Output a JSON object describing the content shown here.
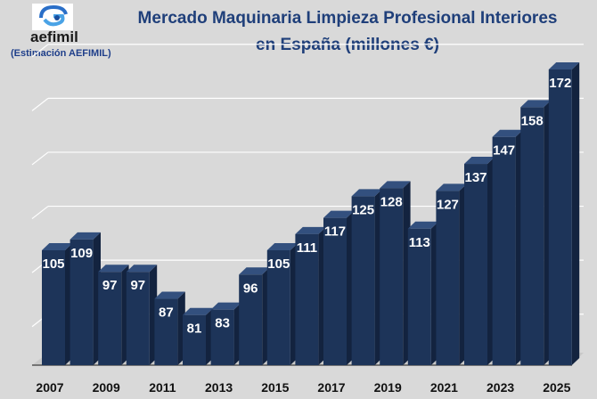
{
  "logo": {
    "name": "aefimil",
    "note": "(Estimación AEFIMIL)"
  },
  "chart_data": {
    "type": "bar",
    "title_line1": "Mercado Maquinaria Limpieza Profesional Interiores",
    "title_line2": "en España (millones €)",
    "categories": [
      "2007",
      "2008",
      "2009",
      "2010",
      "2011",
      "2012",
      "2013",
      "2014",
      "2015",
      "2016",
      "2017",
      "2018",
      "2019",
      "2020",
      "2021",
      "2022",
      "2023",
      "2024",
      "2025"
    ],
    "tick_labels": [
      "2007",
      "2009",
      "2011",
      "2013",
      "2015",
      "2017",
      "2019",
      "2021",
      "2023",
      "2025"
    ],
    "values": [
      105,
      109,
      97,
      97,
      87,
      81,
      83,
      96,
      105,
      111,
      117,
      125,
      128,
      113,
      127,
      137,
      147,
      158,
      172
    ],
    "ylim": [
      60,
      180
    ],
    "grid": true,
    "colors": {
      "bar_front": "#1d3459",
      "bar_top": "#33507e",
      "bar_side": "#13233f",
      "background": "#d9d9d9"
    }
  }
}
